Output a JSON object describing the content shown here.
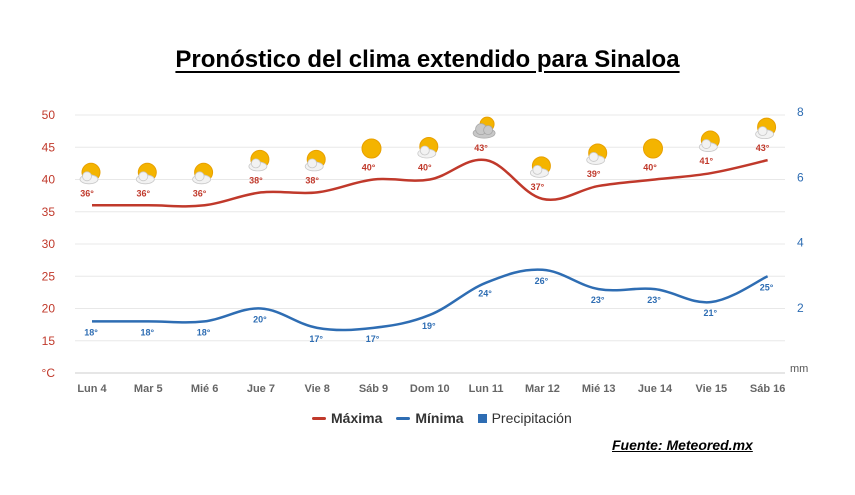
{
  "title": "Pronóstico del clima extendido para Sinaloa",
  "source": "Fuente: Meteored.mx",
  "colors": {
    "max": "#c0392b",
    "min": "#2e6db3",
    "precip": "#2e6db3",
    "grid": "#e8e8e8"
  },
  "chart_data": {
    "type": "line",
    "categories": [
      "Lun 4",
      "Mar 5",
      "Mié 6",
      "Jue 7",
      "Vie 8",
      "Sáb 9",
      "Dom 10",
      "Lun 11",
      "Mar 12",
      "Mié 13",
      "Jue 14",
      "Vie 15",
      "Sáb 16"
    ],
    "series": [
      {
        "name": "Máxima",
        "values": [
          36,
          36,
          36,
          38,
          38,
          40,
          40,
          43,
          37,
          39,
          40,
          41,
          43
        ],
        "labels": [
          "36°",
          "36°",
          "36°",
          "38°",
          "38°",
          "40°",
          "40°",
          "43°",
          "37°",
          "39°",
          "40°",
          "41°",
          "43°"
        ]
      },
      {
        "name": "Mínima",
        "values": [
          18,
          18,
          18,
          20,
          17,
          17,
          19,
          24,
          26,
          23,
          23,
          21,
          25
        ],
        "labels": [
          "18°",
          "18°",
          "18°",
          "20°",
          "17°",
          "17°",
          "19°",
          "24°",
          "26°",
          "23°",
          "23°",
          "21°",
          "25°"
        ]
      },
      {
        "name": "Precipitación",
        "values": [
          0,
          0,
          0,
          0,
          0,
          0,
          0,
          0,
          0,
          0,
          0,
          0,
          0
        ]
      }
    ],
    "weather_icons": [
      "sun-cloud-icon",
      "sun-cloud-icon",
      "sun-cloud-icon",
      "sun-cloud-icon",
      "sun-cloud-icon",
      "sun-icon",
      "sun-cloud-icon",
      "cloud-sun-icon",
      "sun-cloud-icon",
      "sun-cloud-icon",
      "sun-icon",
      "sun-cloud-icon",
      "sun-cloud-icon"
    ],
    "y_left": {
      "unit": "°C",
      "ticks": [
        "50",
        "45",
        "40",
        "35",
        "30",
        "25",
        "20",
        "15"
      ],
      "ylim": [
        10,
        50
      ]
    },
    "y_right": {
      "unit": "mm",
      "ticks": [
        "8",
        "6",
        "4",
        "2"
      ],
      "ylim": [
        0,
        8
      ]
    },
    "grid": true,
    "legend_position": "bottom"
  }
}
